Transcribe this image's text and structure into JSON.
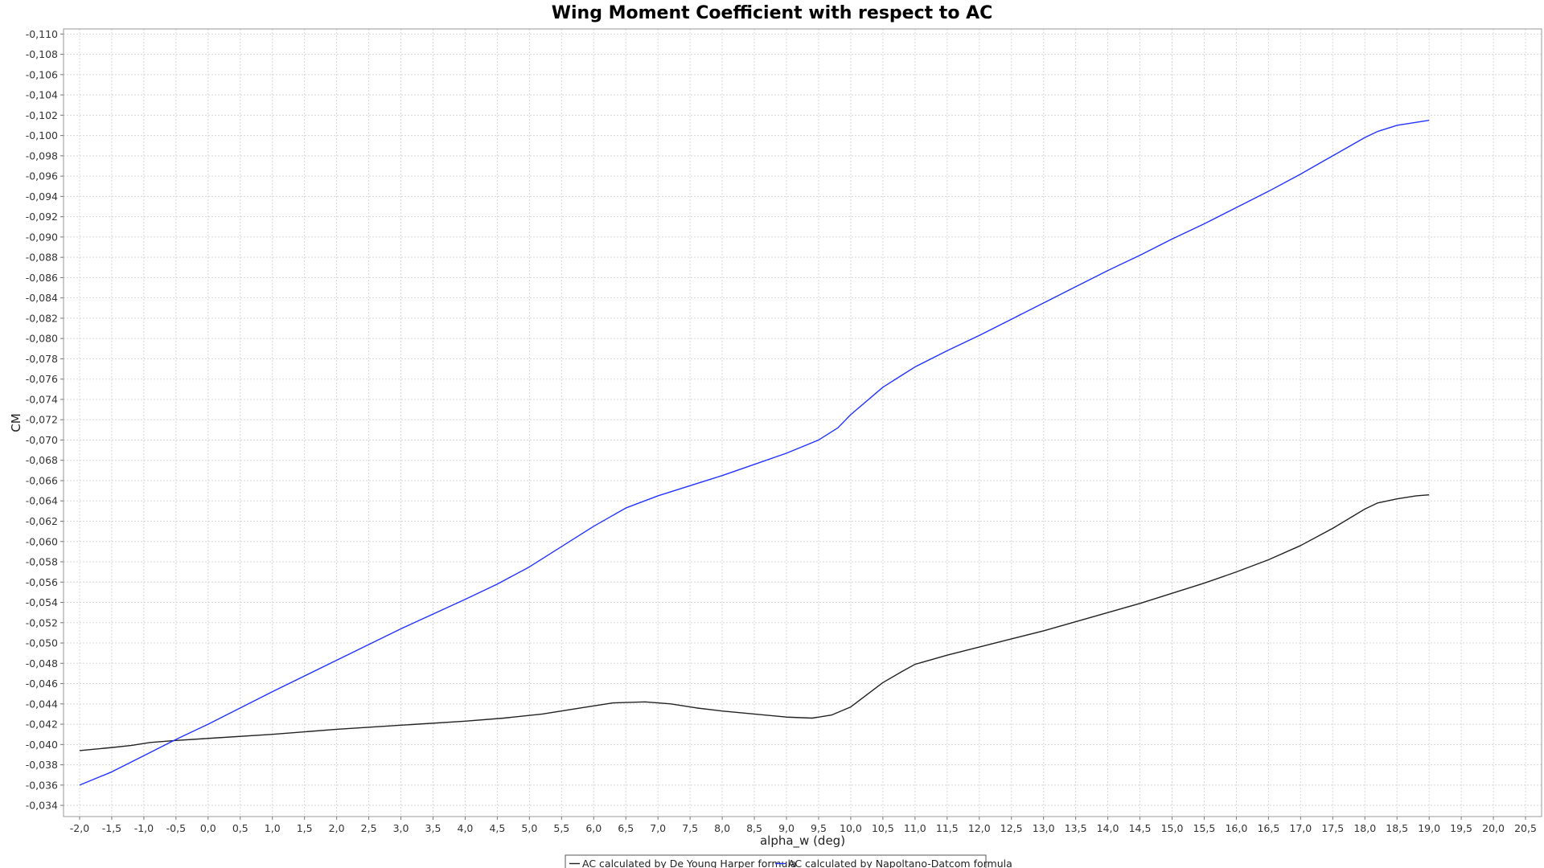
{
  "chart_data": {
    "type": "line",
    "title": "Wing Moment Coefficient with respect to AC",
    "xlabel": "alpha_w (deg)",
    "ylabel": "CM",
    "xlim": [
      -2.25,
      20.75
    ],
    "ylim": [
      -0.1105,
      -0.0329
    ],
    "x_ticks": [
      "-2,0",
      "-1,5",
      "-1,0",
      "-0,5",
      "0,0",
      "0,5",
      "1,0",
      "1,5",
      "2,0",
      "2,5",
      "3,0",
      "3,5",
      "4,0",
      "4,5",
      "5,0",
      "5,5",
      "6,0",
      "6,5",
      "7,0",
      "7,5",
      "8,0",
      "8,5",
      "9,0",
      "9,5",
      "10,0",
      "10,5",
      "11,0",
      "11,5",
      "12,0",
      "12,5",
      "13,0",
      "13,5",
      "14,0",
      "14,5",
      "15,0",
      "15,5",
      "16,0",
      "16,5",
      "17,0",
      "17,5",
      "18,0",
      "18,5",
      "19,0",
      "19,5",
      "20,0",
      "20,5"
    ],
    "y_ticks": [
      "-0,034",
      "-0,036",
      "-0,038",
      "-0,040",
      "-0,042",
      "-0,044",
      "-0,046",
      "-0,048",
      "-0,050",
      "-0,052",
      "-0,054",
      "-0,056",
      "-0,058",
      "-0,060",
      "-0,062",
      "-0,064",
      "-0,066",
      "-0,068",
      "-0,070",
      "-0,072",
      "-0,074",
      "-0,076",
      "-0,078",
      "-0,080",
      "-0,082",
      "-0,084",
      "-0,086",
      "-0,088",
      "-0,090",
      "-0,092",
      "-0,094",
      "-0,096",
      "-0,098",
      "-0,100",
      "-0,102",
      "-0,104",
      "-0,106",
      "-0,108",
      "-0,110"
    ],
    "grid": true,
    "legend_position": "bottom",
    "series": [
      {
        "name": "AC calculated by De Young Harper formula",
        "color": "#222222",
        "x": [
          -2.0,
          -1.5,
          -1.2,
          -0.9,
          -0.5,
          0.0,
          1.0,
          2.0,
          3.0,
          4.0,
          4.6,
          5.2,
          5.8,
          6.3,
          6.8,
          7.2,
          7.6,
          8.0,
          8.5,
          9.0,
          9.4,
          9.7,
          10.0,
          10.5,
          10.8,
          11.0,
          11.5,
          12.0,
          12.5,
          13.0,
          13.5,
          14.0,
          14.5,
          15.0,
          15.5,
          16.0,
          16.5,
          17.0,
          17.5,
          18.0,
          18.2,
          18.5,
          18.8,
          19.0
        ],
        "y": [
          -0.0394,
          -0.0397,
          -0.0399,
          -0.0402,
          -0.0404,
          -0.0406,
          -0.041,
          -0.0415,
          -0.0419,
          -0.0423,
          -0.0426,
          -0.043,
          -0.0436,
          -0.0441,
          -0.0442,
          -0.044,
          -0.0436,
          -0.0433,
          -0.043,
          -0.0427,
          -0.0426,
          -0.0429,
          -0.0437,
          -0.0461,
          -0.0472,
          -0.0479,
          -0.0488,
          -0.0496,
          -0.0504,
          -0.0512,
          -0.0521,
          -0.053,
          -0.0539,
          -0.0549,
          -0.0559,
          -0.057,
          -0.0582,
          -0.0596,
          -0.0613,
          -0.0632,
          -0.0638,
          -0.0642,
          -0.0645,
          -0.0646
        ]
      },
      {
        "name": "AC calculated by Napoltano-Datcom formula",
        "color": "#2233ff",
        "x": [
          -2.0,
          -1.5,
          -1.0,
          -0.5,
          0.0,
          1.0,
          2.0,
          3.0,
          4.0,
          4.5,
          5.0,
          5.5,
          6.0,
          6.5,
          7.0,
          7.5,
          8.0,
          8.5,
          9.0,
          9.5,
          9.8,
          10.0,
          10.5,
          10.8,
          11.0,
          11.5,
          12.0,
          12.5,
          13.0,
          13.5,
          14.0,
          14.5,
          15.0,
          15.5,
          16.0,
          16.5,
          17.0,
          17.5,
          18.0,
          18.2,
          18.5,
          19.0
        ],
        "y": [
          -0.036,
          -0.0373,
          -0.0389,
          -0.0405,
          -0.042,
          -0.0452,
          -0.0483,
          -0.0514,
          -0.0543,
          -0.0558,
          -0.0575,
          -0.0595,
          -0.0615,
          -0.0633,
          -0.0645,
          -0.0655,
          -0.0665,
          -0.0676,
          -0.0687,
          -0.07,
          -0.0712,
          -0.0725,
          -0.0752,
          -0.0764,
          -0.0772,
          -0.0788,
          -0.0803,
          -0.0819,
          -0.0835,
          -0.0851,
          -0.0867,
          -0.0882,
          -0.0898,
          -0.0913,
          -0.0929,
          -0.0945,
          -0.0962,
          -0.098,
          -0.0998,
          -0.1004,
          -0.101,
          -0.1015
        ]
      }
    ]
  }
}
